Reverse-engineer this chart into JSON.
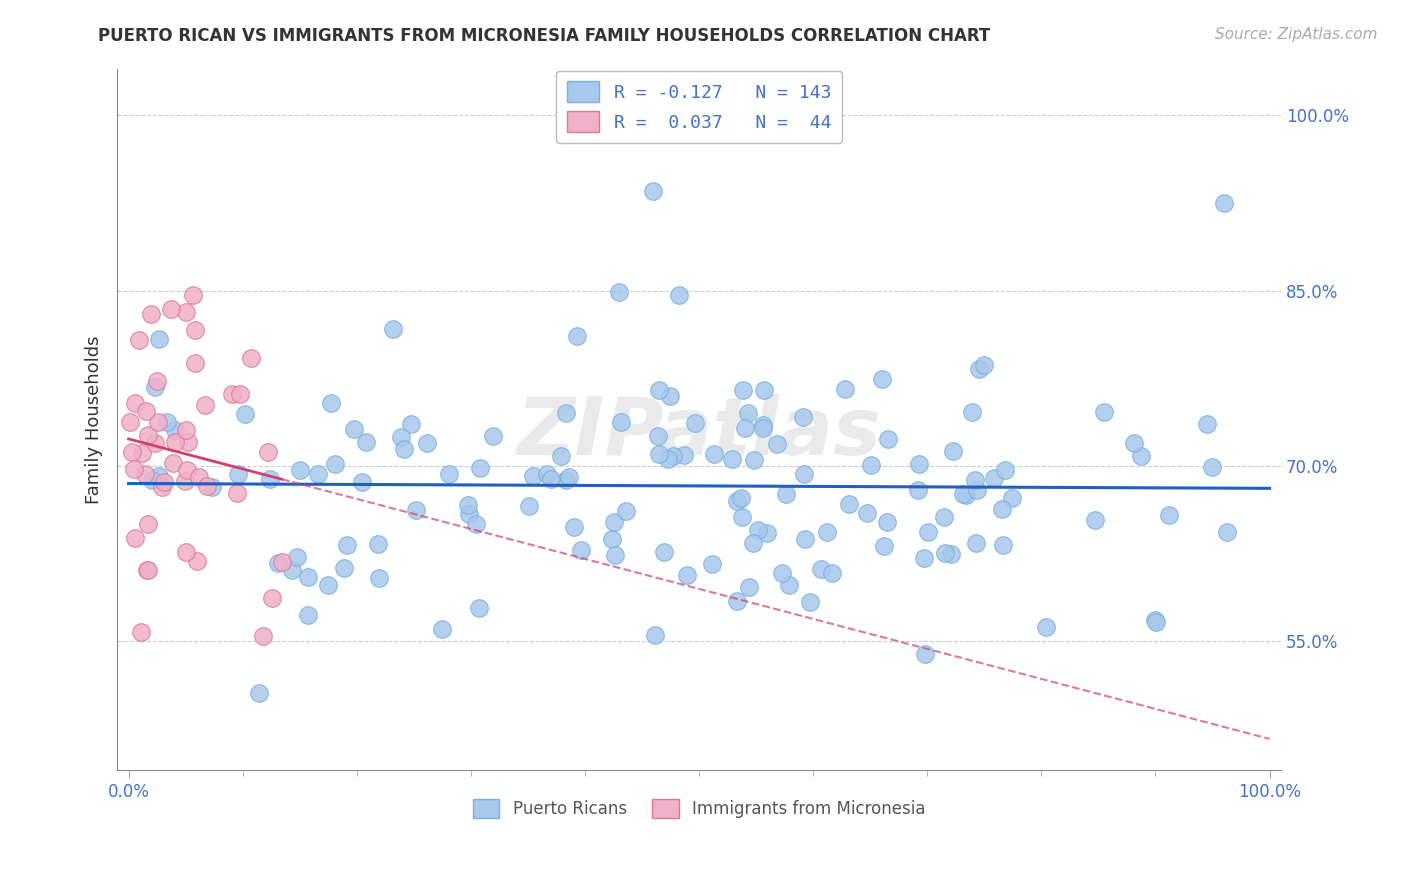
{
  "title": "PUERTO RICAN VS IMMIGRANTS FROM MICRONESIA FAMILY HOUSEHOLDS CORRELATION CHART",
  "source": "Source: ZipAtlas.com",
  "ylabel": "Family Households",
  "xlabel": "",
  "ylim": [
    0.44,
    1.04
  ],
  "yticks": [
    0.55,
    0.7,
    0.85,
    1.0
  ],
  "ytick_labels": [
    "55.0%",
    "70.0%",
    "85.0%",
    "100.0%"
  ],
  "xtick_labels": [
    "0.0%",
    "100.0%"
  ],
  "blue_color": "#a8c8ec",
  "blue_edge": "#7ab0e0",
  "blue_line": "#2060c0",
  "pink_color": "#f0b0c8",
  "pink_edge": "#e07898",
  "pink_line": "#d04070",
  "grid_color": "#cccccc",
  "background_color": "#ffffff",
  "title_fontsize": 12,
  "source_fontsize": 11,
  "R_blue": -0.127,
  "N_blue": 143,
  "R_pink": 0.037,
  "N_pink": 44
}
